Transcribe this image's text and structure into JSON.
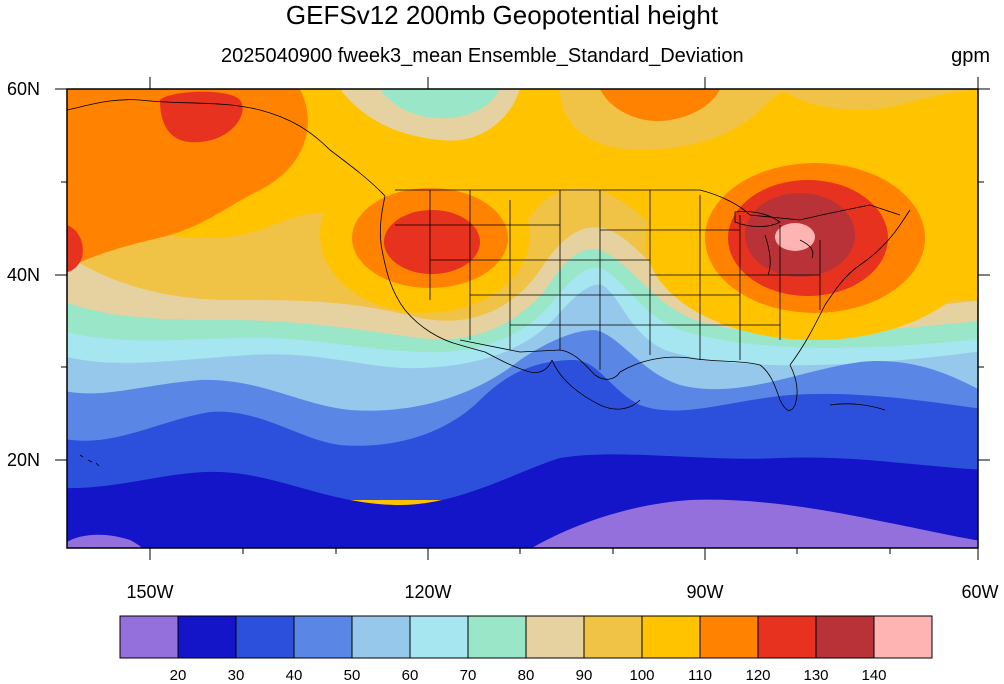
{
  "title": "GEFSv12 200mb Geopotential height",
  "subtitle": "2025040900 fweek3_mean Ensemble_Standard_Deviation",
  "units": "gpm",
  "lat_labels": [
    "60N",
    "40N",
    "20N"
  ],
  "lon_labels": [
    "150W",
    "120W",
    "90W",
    "60W"
  ],
  "colorbar": {
    "levels": [
      "20",
      "30",
      "40",
      "50",
      "60",
      "70",
      "80",
      "90",
      "100",
      "110",
      "120",
      "130",
      "140"
    ],
    "colors": [
      "#9370db",
      "#1414c8",
      "#2d50dc",
      "#5a87e6",
      "#96c8eb",
      "#a6e6f0",
      "#9ae6c8",
      "#e6d2a0",
      "#f0c346",
      "#ffc300",
      "#ff8200",
      "#e6321e",
      "#b93237",
      "#ffb4b4"
    ]
  },
  "map": {
    "lat_range": [
      10,
      60
    ],
    "lon_range": [
      -160,
      -60
    ],
    "features": [
      "coastlines",
      "us-state-boundaries",
      "country-boundaries"
    ],
    "highs": [
      {
        "name": "NE US / Great Lakes maximum",
        "value_range": "140+"
      },
      {
        "name": "Pacific NW maximum",
        "value_range": "120-130"
      },
      {
        "name": "Gulf of Alaska maximum",
        "value_range": "120-130"
      }
    ]
  }
}
